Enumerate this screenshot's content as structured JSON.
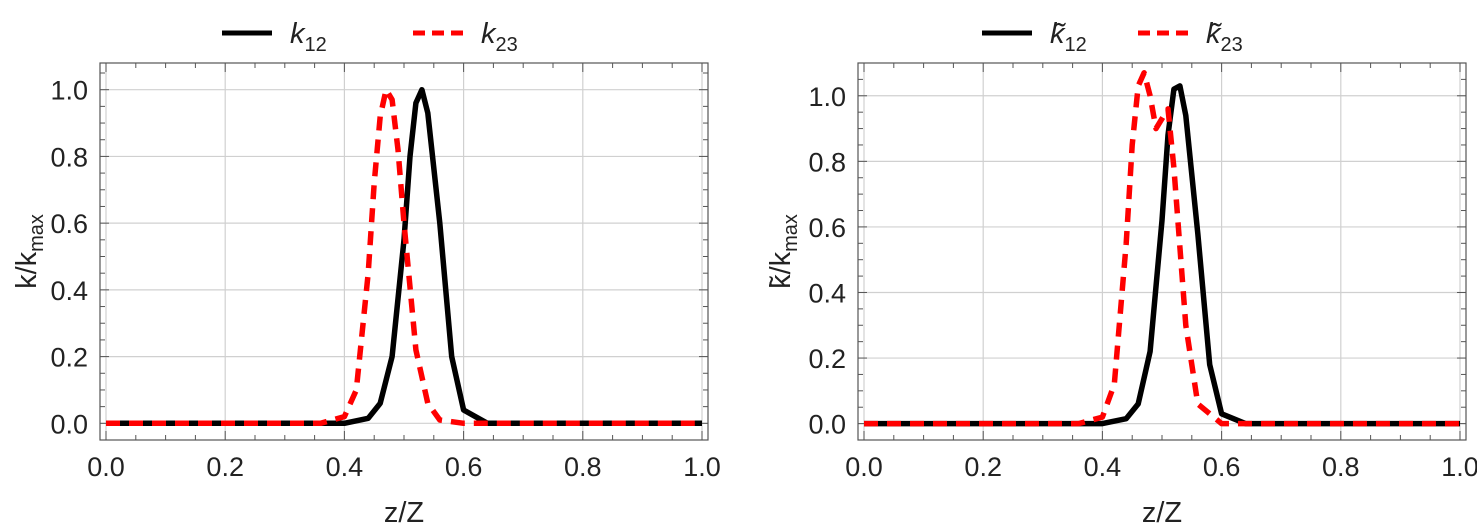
{
  "colors": {
    "k12": "#000000",
    "k23": "#ff0000",
    "grid": "#d0d0d0",
    "frame": "#555555"
  },
  "chart_data": [
    {
      "type": "line",
      "xlabel": "z/Z",
      "ylabel_main": "k/k",
      "ylabel_sub": "max",
      "xlim": [
        0,
        1
      ],
      "ylim": [
        -0.05,
        1.08
      ],
      "x_ticks": [
        "0.0",
        "0.2",
        "0.4",
        "0.6",
        "0.8",
        "1.0"
      ],
      "y_ticks": [
        "0.0",
        "0.2",
        "0.4",
        "0.6",
        "0.8",
        "1.0"
      ],
      "grid": true,
      "legend_position": "top",
      "legend": [
        {
          "main": "k",
          "sub": "12"
        },
        {
          "main": "k",
          "sub": "23"
        }
      ],
      "series": [
        {
          "name": "k12",
          "style": "solid",
          "x": [
            0.0,
            0.4,
            0.44,
            0.46,
            0.48,
            0.5,
            0.51,
            0.52,
            0.53,
            0.54,
            0.56,
            0.58,
            0.6,
            0.64,
            1.0
          ],
          "values": [
            0.0,
            0.0,
            0.015,
            0.06,
            0.2,
            0.55,
            0.8,
            0.96,
            1.0,
            0.93,
            0.6,
            0.2,
            0.04,
            0.0,
            0.0
          ]
        },
        {
          "name": "k23",
          "style": "dashed",
          "x": [
            0.0,
            0.36,
            0.4,
            0.42,
            0.44,
            0.45,
            0.46,
            0.47,
            0.48,
            0.49,
            0.5,
            0.52,
            0.54,
            0.56,
            0.6,
            1.0
          ],
          "values": [
            0.0,
            0.0,
            0.02,
            0.1,
            0.45,
            0.72,
            0.92,
            1.0,
            0.97,
            0.82,
            0.6,
            0.22,
            0.06,
            0.01,
            0.0,
            0.0
          ]
        }
      ]
    },
    {
      "type": "line",
      "xlabel": "z/Z",
      "ylabel_main": "k̃/k",
      "ylabel_sub": "max",
      "xlim": [
        0,
        1
      ],
      "ylim": [
        -0.05,
        1.1
      ],
      "x_ticks": [
        "0.0",
        "0.2",
        "0.4",
        "0.6",
        "0.8",
        "1.0"
      ],
      "y_ticks": [
        "0.0",
        "0.2",
        "0.4",
        "0.6",
        "0.8",
        "1.0"
      ],
      "grid": true,
      "legend_position": "top",
      "legend": [
        {
          "main": "k̃",
          "sub": "12"
        },
        {
          "main": "k̃",
          "sub": "23"
        }
      ],
      "series": [
        {
          "name": "k̃12",
          "style": "solid",
          "x": [
            0.0,
            0.4,
            0.44,
            0.46,
            0.48,
            0.5,
            0.51,
            0.52,
            0.53,
            0.54,
            0.56,
            0.58,
            0.6,
            0.64,
            1.0
          ],
          "values": [
            0.0,
            0.0,
            0.015,
            0.06,
            0.22,
            0.62,
            0.88,
            1.02,
            1.03,
            0.94,
            0.58,
            0.18,
            0.03,
            0.0,
            0.0
          ]
        },
        {
          "name": "k̃23",
          "style": "dashed",
          "x": [
            0.0,
            0.36,
            0.4,
            0.42,
            0.44,
            0.45,
            0.46,
            0.47,
            0.48,
            0.49,
            0.5,
            0.51,
            0.52,
            0.54,
            0.56,
            0.6,
            1.0
          ],
          "values": [
            0.0,
            0.0,
            0.02,
            0.12,
            0.55,
            0.85,
            1.03,
            1.07,
            1.0,
            0.9,
            0.93,
            0.96,
            0.78,
            0.3,
            0.06,
            0.0,
            0.0
          ]
        }
      ]
    }
  ]
}
